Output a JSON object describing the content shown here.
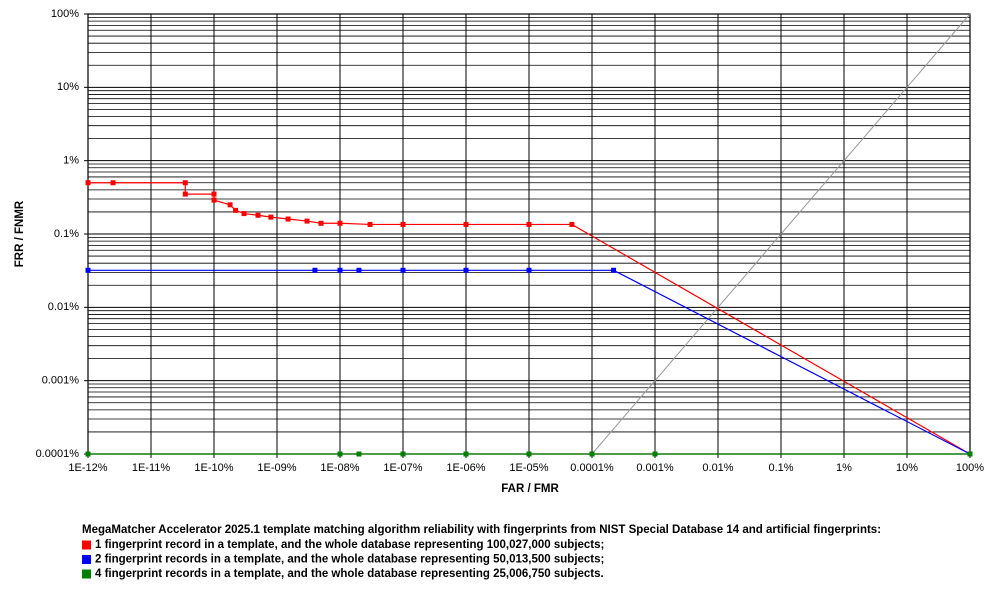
{
  "chart_data": {
    "type": "line",
    "x_label": "FAR / FMR",
    "y_label": "FRR / FNMR",
    "legend_title": "MegaMatcher Accelerator 2025.1 template matching algorithm reliability with fingerprints from NIST Special Database 14 and artificial fingerprints:",
    "xscale": "log",
    "yscale": "log",
    "grid": true,
    "diagonal": true,
    "xlim": [
      1e-12,
      100
    ],
    "ylim": [
      0.0001,
      100
    ],
    "xticks": [
      {
        "value": 1e-12,
        "label": "1E-12%"
      },
      {
        "value": 1e-11,
        "label": "1E-11%"
      },
      {
        "value": 1e-10,
        "label": "1E-10%"
      },
      {
        "value": 1e-09,
        "label": "1E-09%"
      },
      {
        "value": 1e-08,
        "label": "1E-08%"
      },
      {
        "value": 1e-07,
        "label": "1E-07%"
      },
      {
        "value": 1e-06,
        "label": "1E-06%"
      },
      {
        "value": 1e-05,
        "label": "1E-05%"
      },
      {
        "value": 0.0001,
        "label": "0.0001%"
      },
      {
        "value": 0.001,
        "label": "0.001%"
      },
      {
        "value": 0.01,
        "label": "0.01%"
      },
      {
        "value": 0.1,
        "label": "0.1%"
      },
      {
        "value": 1,
        "label": "1%"
      },
      {
        "value": 10,
        "label": "10%"
      },
      {
        "value": 100,
        "label": "100%"
      }
    ],
    "yticks": [
      {
        "value": 0.0001,
        "label": "0.0001%"
      },
      {
        "value": 0.001,
        "label": "0.001%"
      },
      {
        "value": 0.01,
        "label": "0.01%"
      },
      {
        "value": 0.1,
        "label": "0.1%"
      },
      {
        "value": 1,
        "label": "1%"
      },
      {
        "value": 10,
        "label": "10%"
      },
      {
        "value": 100,
        "label": "100%"
      }
    ],
    "series": [
      {
        "name": "1 fingerprint record in a template, and the whole database representing 100,027,000 subjects;",
        "color": "#ff0000",
        "x": [
          1e-12,
          2.5e-12,
          3.5e-11,
          3.5e-11,
          1e-10,
          1e-10,
          1.8e-10,
          2.2e-10,
          3e-10,
          5e-10,
          8e-10,
          1.5e-09,
          3e-09,
          5e-09,
          1e-08,
          3e-08,
          1e-07,
          1e-06,
          1e-05,
          4.8e-05,
          100
        ],
        "values": [
          0.5,
          0.5,
          0.5,
          0.35,
          0.35,
          0.29,
          0.25,
          0.21,
          0.19,
          0.18,
          0.17,
          0.16,
          0.15,
          0.14,
          0.14,
          0.135,
          0.135,
          0.135,
          0.135,
          0.135,
          0.0001
        ]
      },
      {
        "name": "2 fingerprint records in a template, and the whole database representing 50,013,500 subjects;",
        "color": "#0000ff",
        "x": [
          1e-12,
          4e-09,
          1e-08,
          2e-08,
          1e-07,
          1e-06,
          1e-05,
          0.00022,
          100
        ],
        "values": [
          0.032,
          0.032,
          0.032,
          0.032,
          0.032,
          0.032,
          0.032,
          0.032,
          0.0001
        ]
      },
      {
        "name": "4 fingerprint records in a template, and the whole database representing 25,006,750 subjects.",
        "color": "#008000",
        "x": [
          1e-12,
          1e-08,
          2e-08,
          1e-07,
          1e-06,
          1e-05,
          0.0001,
          0.001,
          100
        ],
        "values": [
          0.0001,
          0.0001,
          0.0001,
          0.0001,
          0.0001,
          0.0001,
          0.0001,
          0.0001,
          0.0001
        ]
      }
    ]
  }
}
